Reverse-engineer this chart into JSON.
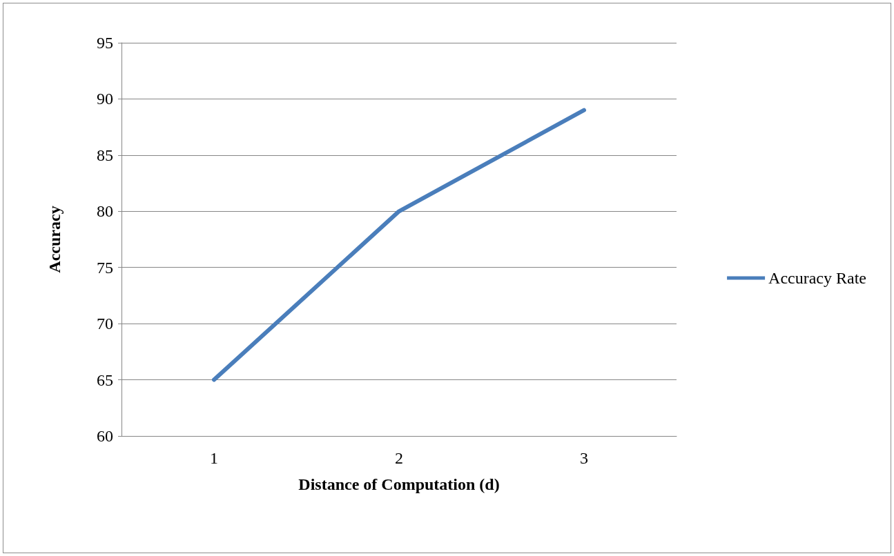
{
  "chart_data": {
    "type": "line",
    "xlabel": "Distance of Computation (d)",
    "ylabel": "Accuracy",
    "categories": [
      "1",
      "2",
      "3"
    ],
    "series": [
      {
        "name": "Accuracy Rate",
        "color": "#4a7ebb",
        "values": [
          65,
          80,
          89
        ]
      }
    ],
    "ylim": [
      60,
      95
    ],
    "yticks": [
      60,
      65,
      70,
      75,
      80,
      85,
      90,
      95
    ],
    "grid": "y",
    "legend": "right",
    "marker": "none",
    "line_style": "solid"
  }
}
